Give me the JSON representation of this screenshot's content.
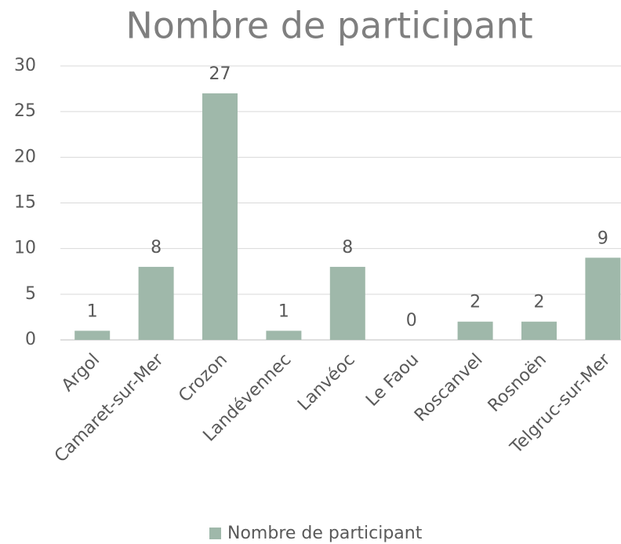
{
  "chart_data": {
    "type": "bar",
    "title": "Nombre de participant",
    "categories": [
      "Argol",
      "Camaret-sur-Mer",
      "Crozon",
      "Landévennec",
      "Lanvéoc",
      "Le Faou",
      "Roscanvel",
      "Rosnoën",
      "Telgruc-sur-Mer"
    ],
    "series": [
      {
        "name": "Nombre de participant",
        "color": "#9fb8aa",
        "values": [
          1,
          8,
          27,
          1,
          8,
          0,
          2,
          2,
          9
        ]
      }
    ],
    "ylim": [
      0,
      30
    ],
    "yticks": [
      0,
      5,
      10,
      15,
      20,
      25,
      30
    ],
    "grid": true,
    "legend": "bottom"
  }
}
